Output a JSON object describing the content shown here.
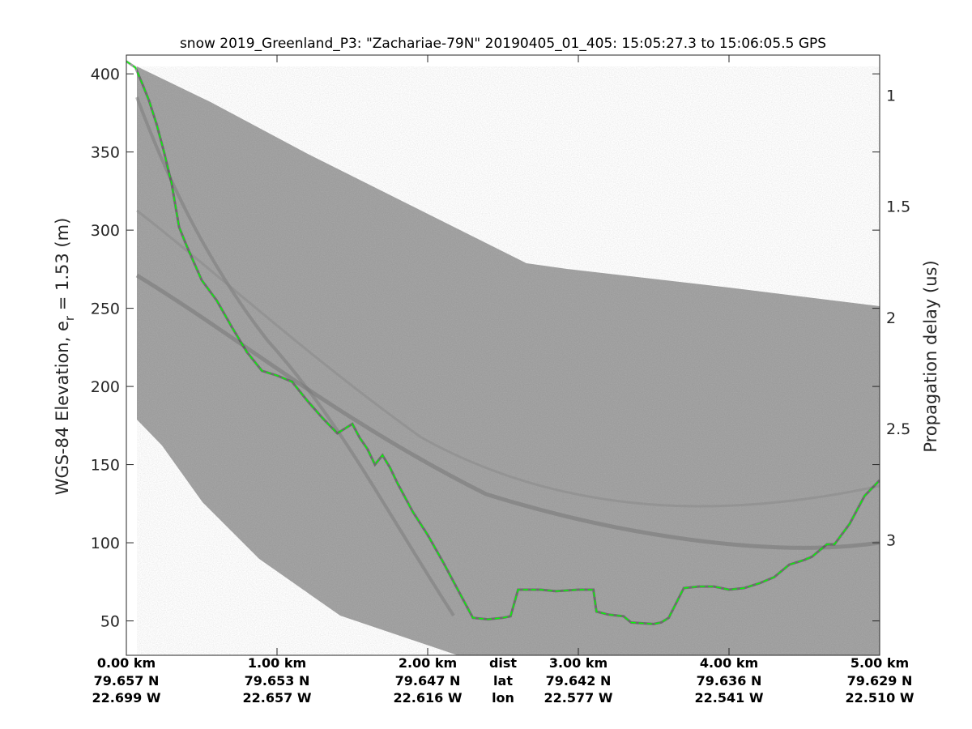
{
  "chart_data": {
    "type": "line",
    "title": "snow 2019_Greenland_P3: \"Zachariae-79N\"  20190405_01_405: 15:05:27.3 to 15:06:05.5 GPS",
    "ylabel_main": "WGS-84 Elevation, e",
    "ylabel_sub": "r",
    "ylabel_suffix": " = 1.53 (m)",
    "y2label": "Propagation delay (us)",
    "xlim": [
      0,
      5
    ],
    "ylim": [
      28,
      412
    ],
    "y2lim": [
      0.82,
      3.52
    ],
    "y_ticks": [
      50,
      100,
      150,
      200,
      250,
      300,
      350,
      400
    ],
    "y_tick_labels": [
      "50",
      "100",
      "150",
      "200",
      "250",
      "300",
      "350",
      "400"
    ],
    "y2_ticks": [
      1,
      1.5,
      2,
      2.5,
      3
    ],
    "y2_tick_labels": [
      "1",
      "1.5",
      "2",
      "2.5",
      "3"
    ],
    "x_ticks": [
      0,
      1,
      2,
      3,
      4,
      5
    ],
    "bottom_rows": {
      "dist": [
        "0.00 km",
        "1.00 km",
        "2.00 km",
        "3.00 km",
        "4.00 km",
        "5.00 km"
      ],
      "lat": [
        "79.657 N",
        "79.653 N",
        "79.647 N",
        "79.642 N",
        "79.636 N",
        "79.629 N"
      ],
      "lon": [
        "22.699 W",
        "22.657 W",
        "22.616 W",
        "22.577 W",
        "22.541 W",
        "22.510 W"
      ]
    },
    "row_labels": [
      "dist",
      "lat",
      "lon"
    ],
    "series": [
      {
        "color": "#00ff00",
        "style": "dashed",
        "x": [
          0,
          0.06,
          0.1,
          0.15,
          0.2,
          0.25,
          0.3,
          0.35,
          0.4,
          0.5,
          0.6,
          0.7,
          0.8,
          0.9,
          1.0,
          1.1,
          1.2,
          1.3,
          1.4,
          1.5,
          1.55,
          1.6,
          1.65,
          1.7,
          1.75,
          1.8,
          1.9,
          2.0,
          2.1,
          2.2,
          2.3,
          2.4,
          2.5,
          2.55,
          2.6,
          2.75,
          2.85,
          3.0,
          3.1,
          3.12,
          3.2,
          3.3,
          3.35,
          3.5,
          3.55,
          3.6,
          3.7,
          3.8,
          3.9,
          4.0,
          4.1,
          4.2,
          4.3,
          4.4,
          4.5,
          4.55,
          4.65,
          4.7,
          4.8,
          4.9,
          5.0
        ],
        "y": [
          408,
          404,
          395,
          383,
          368,
          350,
          330,
          302,
          290,
          268,
          255,
          238,
          222,
          210,
          207,
          203,
          191,
          180,
          170,
          176,
          167,
          160,
          150,
          156,
          148,
          138,
          120,
          105,
          88,
          70,
          52,
          51,
          52,
          53,
          70,
          70,
          69,
          70,
          70,
          56,
          54,
          53,
          49,
          48,
          49,
          52,
          71,
          72,
          72,
          70,
          71,
          74,
          78,
          86,
          89,
          91,
          99,
          99,
          112,
          130,
          140
        ]
      }
    ]
  }
}
